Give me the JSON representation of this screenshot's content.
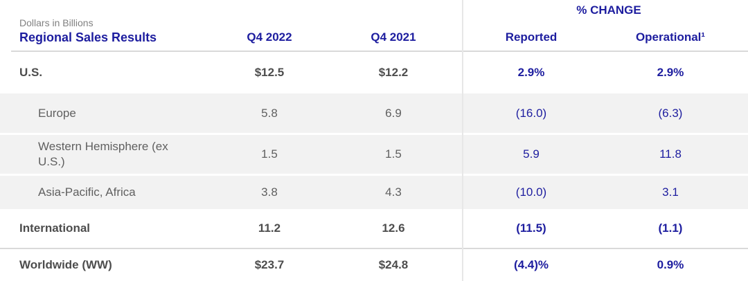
{
  "header": {
    "subtitle": "Dollars in Billions",
    "title": "Regional Sales Results",
    "q4_2022": "Q4 2022",
    "q4_2021": "Q4 2021",
    "pct_change": "% CHANGE",
    "reported": "Reported",
    "operational": "Operational¹"
  },
  "colors": {
    "accent_blue": "#1d1d9f",
    "bold_text": "#4d4d4d",
    "regular_text": "#606060",
    "muted_text": "#808080",
    "band_gray": "#f2f2f2",
    "rule_gray": "#d9d9d9",
    "divider_gray": "#e7e7e7"
  },
  "chart_data": {
    "type": "table",
    "title": "Regional Sales Results",
    "subtitle": "Dollars in Billions",
    "columns": [
      "Regional Sales Results",
      "Q4 2022",
      "Q4 2021",
      "% CHANGE Reported",
      "% CHANGE Operational¹"
    ],
    "rows": [
      [
        "U.S.",
        "$12.5",
        "$12.2",
        "2.9%",
        "2.9%"
      ],
      [
        "Europe",
        "5.8",
        "6.9",
        "(16.0)",
        "(6.3)"
      ],
      [
        "Western Hemisphere (ex U.S.)",
        "1.5",
        "1.5",
        "5.9",
        "11.8"
      ],
      [
        "Asia-Pacific, Africa",
        "3.8",
        "4.3",
        "(10.0)",
        "3.1"
      ],
      [
        "International",
        "11.2",
        "12.6",
        "(11.5)",
        "(1.1)"
      ],
      [
        "Worldwide (WW)",
        "$23.7",
        "$24.8",
        "(4.4)%",
        "0.9%"
      ]
    ]
  }
}
